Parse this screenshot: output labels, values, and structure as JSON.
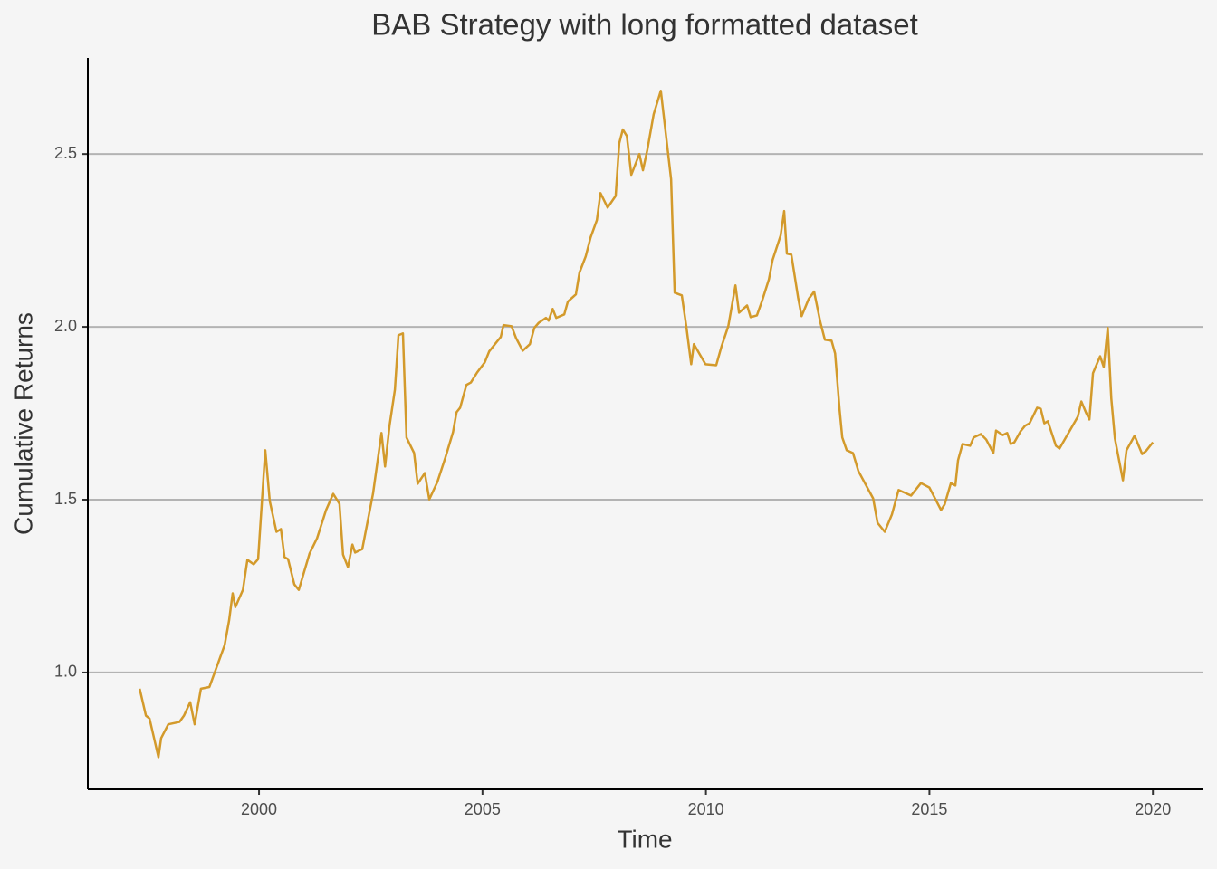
{
  "chart_data": {
    "type": "line",
    "title": "BAB Strategy with long formatted dataset",
    "x_label": "Time",
    "y_label": "Cumulative Returns",
    "x": [
      1997.33,
      1997.47,
      1997.55,
      1997.75,
      1997.81,
      1997.97,
      1998.22,
      1998.32,
      1998.46,
      1998.56,
      1998.7,
      1998.89,
      1999.23,
      1999.33,
      1999.41,
      1999.47,
      1999.64,
      1999.74,
      1999.88,
      1999.98,
      2000.14,
      2000.24,
      2000.39,
      2000.49,
      2000.57,
      2000.65,
      2000.79,
      2000.89,
      2001.13,
      2001.3,
      2001.5,
      2001.66,
      2001.8,
      2001.88,
      2001.99,
      2002.09,
      2002.15,
      2002.31,
      2002.55,
      2002.74,
      2002.82,
      2002.92,
      2003.04,
      2003.12,
      2003.22,
      2003.3,
      2003.47,
      2003.55,
      2003.71,
      2003.81,
      2003.99,
      2004.17,
      2004.34,
      2004.42,
      2004.5,
      2004.64,
      2004.74,
      2004.88,
      2005.05,
      2005.15,
      2005.31,
      2005.41,
      2005.47,
      2005.65,
      2005.75,
      2005.9,
      2006.06,
      2006.16,
      2006.26,
      2006.42,
      2006.48,
      2006.57,
      2006.65,
      2006.83,
      2006.91,
      2007.09,
      2007.17,
      2007.31,
      2007.42,
      2007.56,
      2007.64,
      2007.8,
      2007.98,
      2008.06,
      2008.14,
      2008.23,
      2008.33,
      2008.51,
      2008.59,
      2008.69,
      2008.83,
      2008.99,
      2009.22,
      2009.3,
      2009.46,
      2009.56,
      2009.67,
      2009.73,
      2009.99,
      2010.23,
      2010.35,
      2010.5,
      2010.66,
      2010.74,
      2010.92,
      2011.0,
      2011.14,
      2011.25,
      2011.41,
      2011.49,
      2011.67,
      2011.75,
      2011.81,
      2011.91,
      2012.06,
      2012.14,
      2012.3,
      2012.42,
      2012.56,
      2012.66,
      2012.81,
      2012.89,
      2012.99,
      2013.05,
      2013.15,
      2013.29,
      2013.41,
      2013.74,
      2013.84,
      2014.0,
      2014.16,
      2014.31,
      2014.45,
      2014.59,
      2014.81,
      2015.0,
      2015.26,
      2015.34,
      2015.48,
      2015.58,
      2015.64,
      2015.74,
      2015.91,
      2015.99,
      2016.15,
      2016.27,
      2016.43,
      2016.49,
      2016.64,
      2016.74,
      2016.82,
      2016.9,
      2017.04,
      2017.14,
      2017.24,
      2017.41,
      2017.49,
      2017.57,
      2017.65,
      2017.83,
      2017.91,
      2018.32,
      2018.4,
      2018.5,
      2018.58,
      2018.66,
      2018.82,
      2018.9,
      2018.99,
      2019.07,
      2019.15,
      2019.33,
      2019.41,
      2019.59,
      2019.76,
      2019.84,
      2020.0
    ],
    "series": [
      {
        "color": "#d39a2b",
        "values": [
          0.953,
          0.875,
          0.867,
          0.755,
          0.81,
          0.85,
          0.857,
          0.875,
          0.914,
          0.85,
          0.953,
          0.958,
          1.079,
          1.15,
          1.229,
          1.189,
          1.239,
          1.326,
          1.313,
          1.328,
          1.643,
          1.496,
          1.407,
          1.415,
          1.334,
          1.328,
          1.255,
          1.239,
          1.344,
          1.389,
          1.47,
          1.517,
          1.488,
          1.341,
          1.305,
          1.37,
          1.347,
          1.357,
          1.517,
          1.693,
          1.596,
          1.714,
          1.818,
          1.976,
          1.981,
          1.68,
          1.635,
          1.546,
          1.577,
          1.501,
          1.551,
          1.622,
          1.695,
          1.753,
          1.766,
          1.832,
          1.839,
          1.868,
          1.897,
          1.929,
          1.955,
          1.971,
          2.005,
          2.002,
          1.968,
          1.931,
          1.95,
          1.997,
          2.012,
          2.026,
          2.018,
          2.052,
          2.026,
          2.036,
          2.073,
          2.094,
          2.157,
          2.204,
          2.259,
          2.309,
          2.387,
          2.345,
          2.379,
          2.531,
          2.571,
          2.552,
          2.44,
          2.5,
          2.453,
          2.513,
          2.615,
          2.683,
          2.427,
          2.099,
          2.091,
          2.002,
          1.892,
          1.95,
          1.892,
          1.889,
          1.944,
          2.002,
          2.12,
          2.041,
          2.062,
          2.028,
          2.033,
          2.073,
          2.138,
          2.193,
          2.264,
          2.335,
          2.212,
          2.209,
          2.086,
          2.031,
          2.081,
          2.102,
          2.013,
          1.963,
          1.96,
          1.923,
          1.761,
          1.68,
          1.643,
          1.635,
          1.583,
          1.504,
          1.433,
          1.407,
          1.457,
          1.528,
          1.52,
          1.512,
          1.548,
          1.535,
          1.47,
          1.486,
          1.548,
          1.541,
          1.614,
          1.661,
          1.656,
          1.68,
          1.69,
          1.674,
          1.635,
          1.7,
          1.687,
          1.693,
          1.661,
          1.666,
          1.698,
          1.714,
          1.721,
          1.766,
          1.763,
          1.721,
          1.727,
          1.656,
          1.648,
          1.74,
          1.784,
          1.753,
          1.732,
          1.866,
          1.915,
          1.884,
          1.997,
          1.792,
          1.677,
          1.556,
          1.643,
          1.685,
          1.632,
          1.64,
          1.666
        ]
      }
    ],
    "xlim": [
      1996.17,
      2021.11
    ],
    "ylim": [
      0.662,
      2.778
    ],
    "xticks": [
      2000,
      2005,
      2010,
      2015,
      2020
    ],
    "yticks": [
      {
        "value": 1,
        "label": "1.0"
      },
      1.5,
      {
        "value": 2,
        "label": "2.0"
      },
      2.5
    ],
    "grid": "y"
  }
}
